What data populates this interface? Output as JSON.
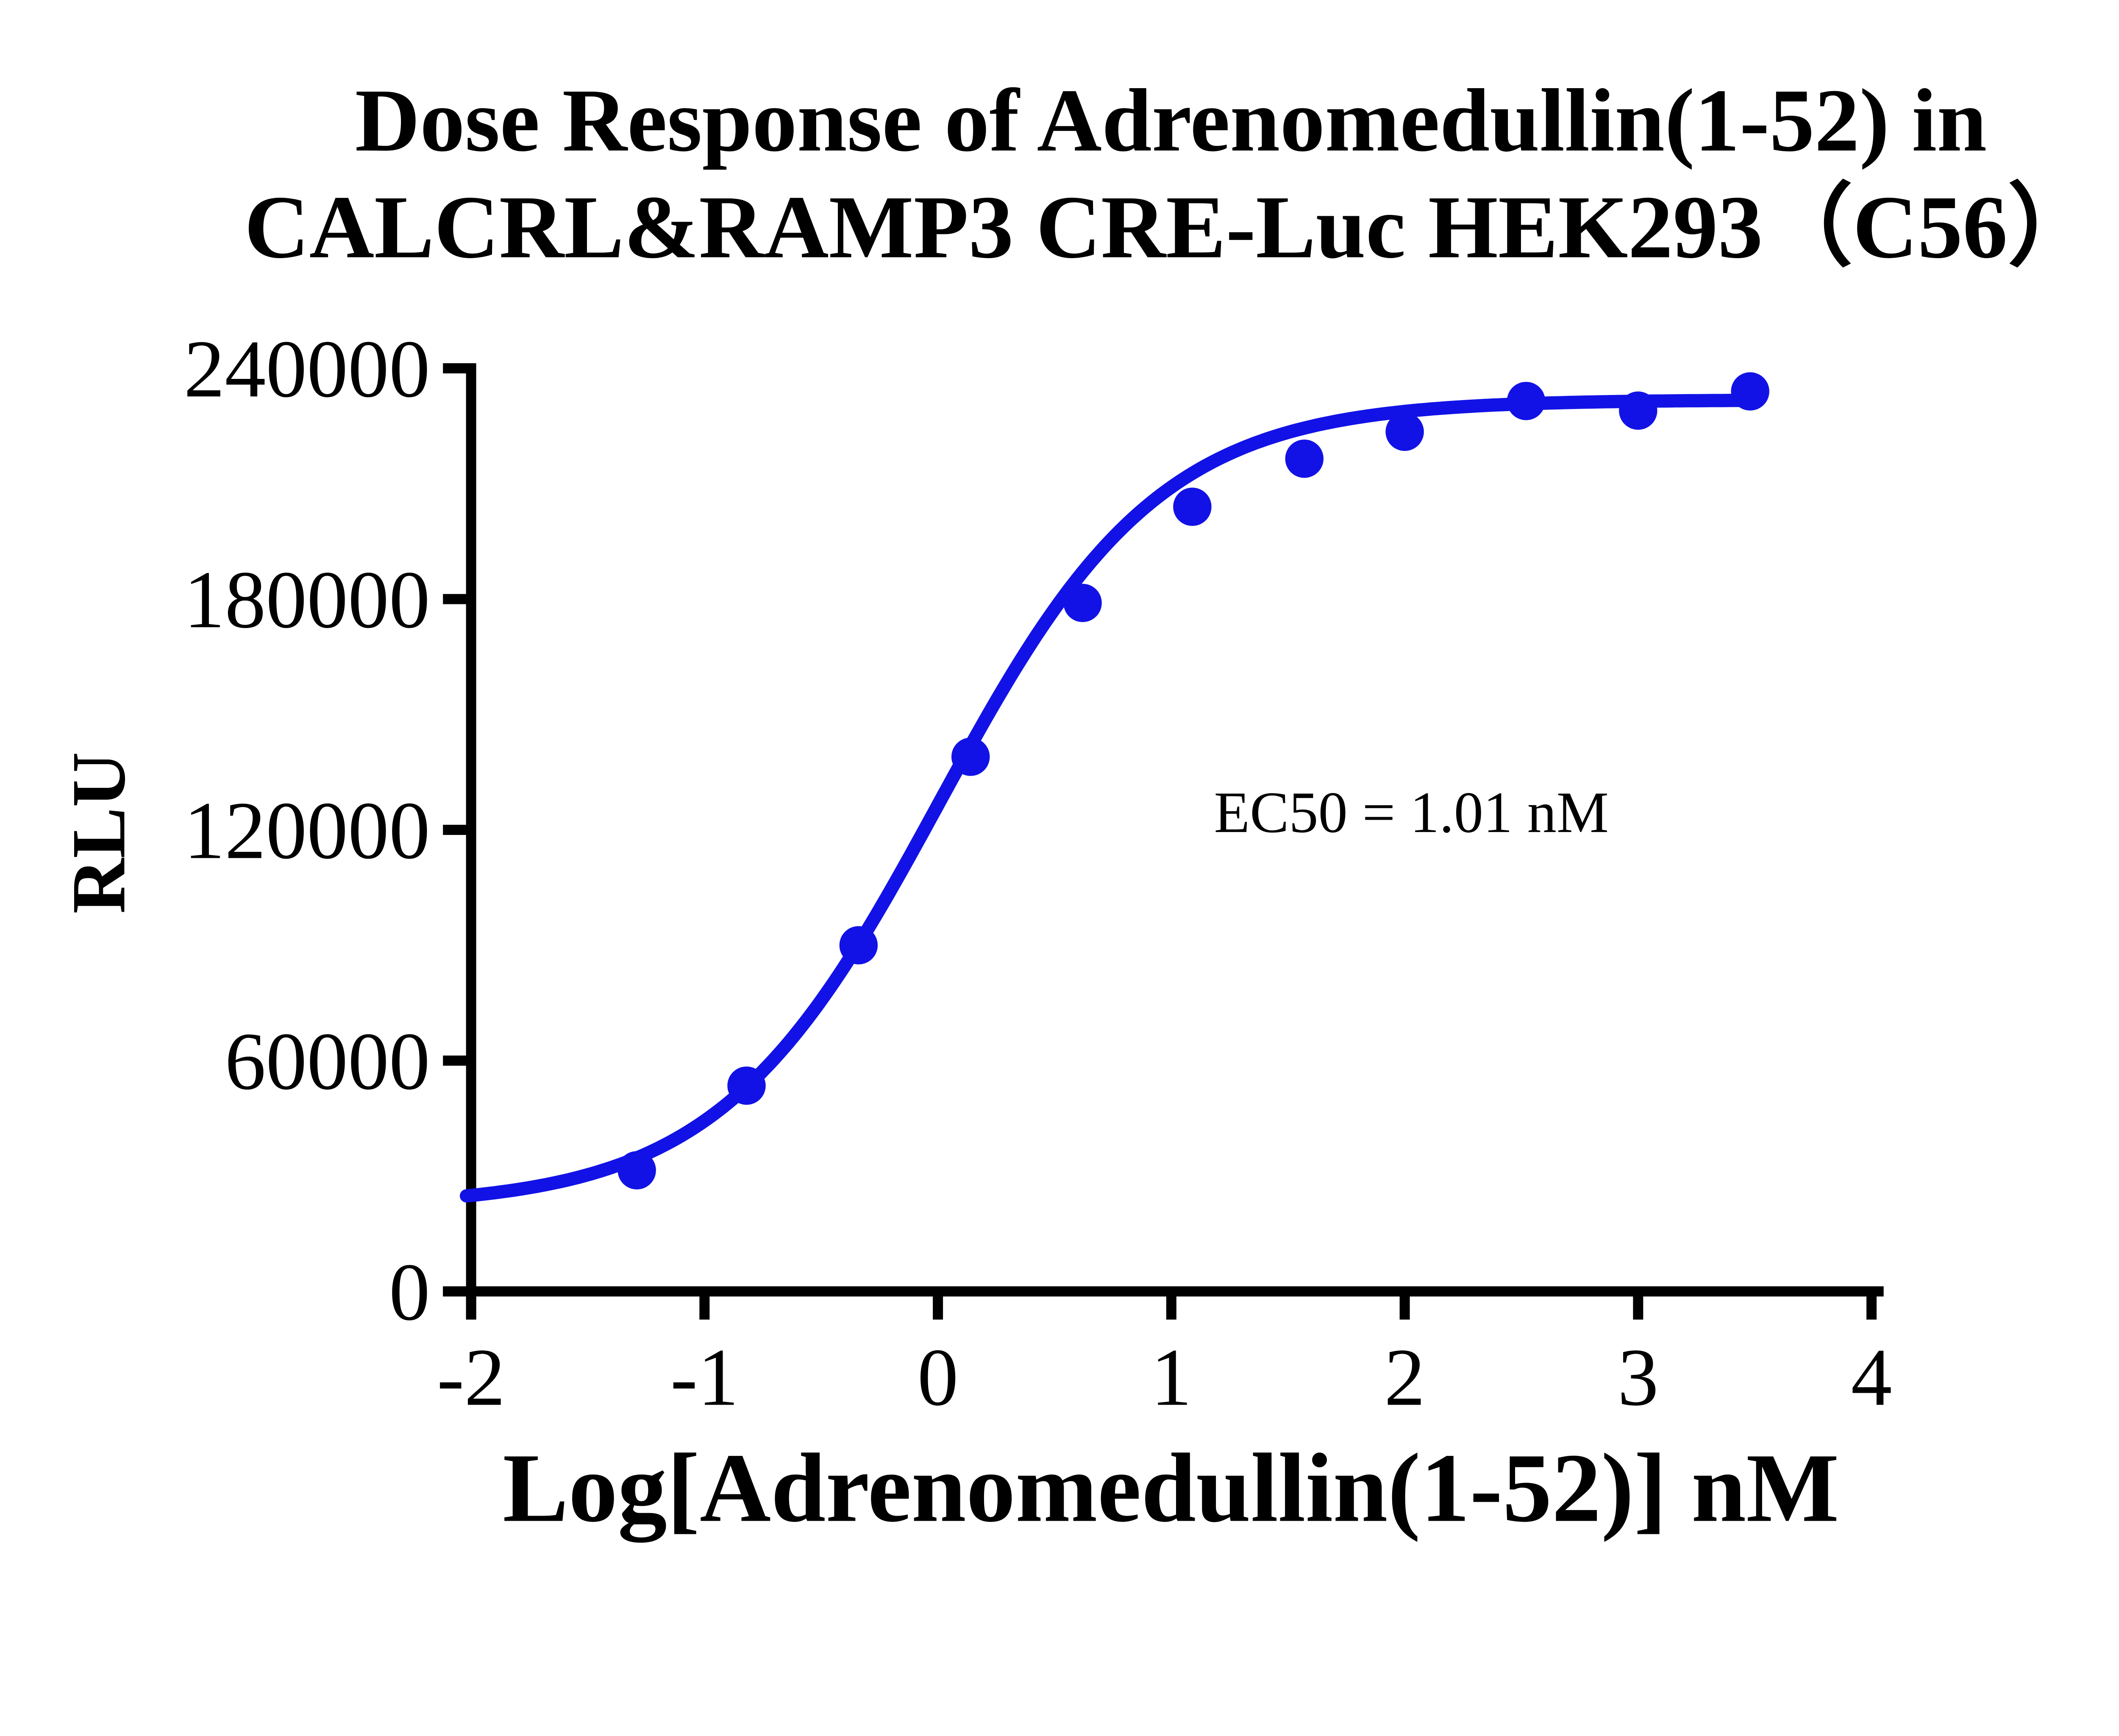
{
  "title": {
    "line1": "Dose Response of Adrenomedullin(1-52) in",
    "line2": "CALCRL&RAMP3 CRE-Luc HEK293（C56）"
  },
  "axes": {
    "x_label": "Log[Adrenomedullin(1-52)] nM",
    "y_label": "RLU"
  },
  "annotation": {
    "ec50_label": "EC50 = 1.01 nM"
  },
  "colors": {
    "curve": "#1212E6",
    "axis": "#000000",
    "background": "#FFFFFF"
  },
  "chart_data": {
    "type": "scatter",
    "title": "Dose Response of Adrenomedullin(1-52) in CALCRL&RAMP3 CRE-Luc HEK293（C56）",
    "xlabel": "Log[Adrenomedullin(1-52)] nM",
    "ylabel": "RLU",
    "xlim": [
      -2,
      4
    ],
    "ylim": [
      0,
      240000
    ],
    "x_ticks": [
      -2,
      -1,
      0,
      1,
      2,
      3,
      4
    ],
    "y_ticks": [
      0,
      60000,
      120000,
      180000,
      240000
    ],
    "grid": false,
    "legend_position": "none",
    "series": [
      {
        "name": "Adrenomedullin(1-52)",
        "x": [
          -1.29,
          -0.82,
          -0.34,
          0.14,
          0.62,
          1.09,
          1.57,
          2.0,
          2.52,
          3.0,
          3.48
        ],
        "y": [
          31500,
          53500,
          90000,
          139000,
          179000,
          204000,
          216500,
          223500,
          231500,
          229000,
          234000
        ]
      }
    ],
    "fit_curve": {
      "model": "four-parameter logistic (sigmoid dose-response)",
      "bottom": 22000,
      "top": 231800,
      "log_ec50": 0.004,
      "hill_slope": 0.92,
      "ec50_nM": 1.01,
      "curve_x_range": [
        -2.02,
        3.5
      ]
    }
  }
}
